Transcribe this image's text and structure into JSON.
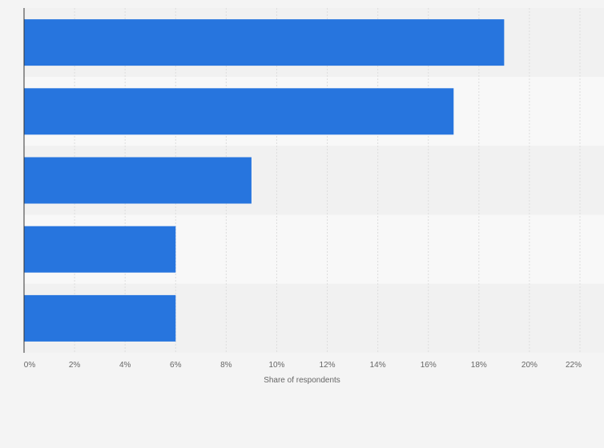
{
  "chart_data": {
    "type": "bar",
    "orientation": "horizontal",
    "categories": [
      "",
      "",
      "",
      "",
      ""
    ],
    "values": [
      19,
      17,
      9,
      6,
      6
    ],
    "value_unit": "%",
    "xlabel": "Share of respondents",
    "ylabel": "",
    "xlim": [
      0,
      22
    ],
    "x_ticks": [
      0,
      2,
      4,
      6,
      8,
      10,
      12,
      14,
      16,
      18,
      20,
      22
    ],
    "x_tick_labels": [
      "0%",
      "2%",
      "4%",
      "6%",
      "8%",
      "10%",
      "12%",
      "14%",
      "16%",
      "18%",
      "20%",
      "22%"
    ],
    "grid": true,
    "legend": "none",
    "colors": {
      "bar": "#2775de",
      "band_dark": "#f1f1f1",
      "band_light": "#f8f8f8",
      "grid": "#dddddd",
      "axis": "#333333",
      "text": "#666666"
    }
  }
}
